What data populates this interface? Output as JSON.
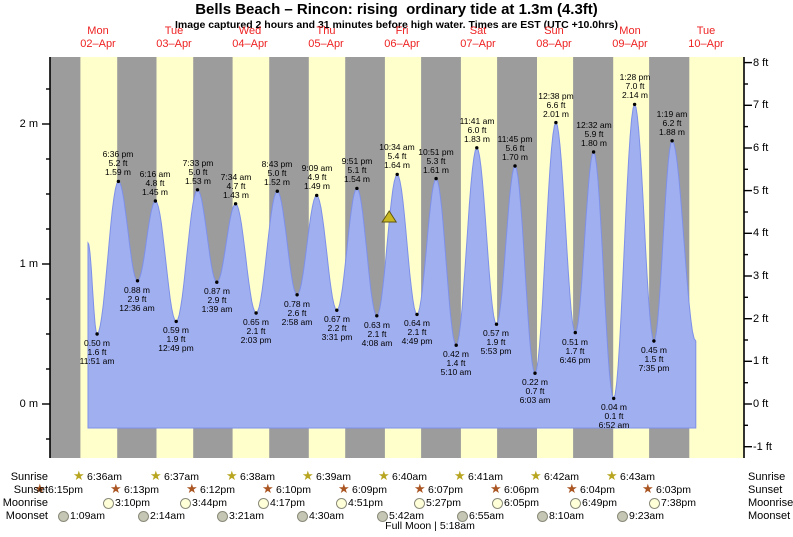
{
  "chart_data": {
    "type": "area",
    "title": "Bells Beach – Rincon: rising  ordinary tide at 1.3m (4.3ft)",
    "subtitle": "Image captured 2 hours and 31 minutes before high water. Times are EST (UTC +10.0hrs)",
    "units": {
      "left_axis": "m",
      "right_axis": "ft"
    },
    "y_ticks_m": [
      0,
      1,
      2
    ],
    "y_ticks_ft": [
      -1,
      0,
      1,
      2,
      3,
      4,
      5,
      6,
      7,
      8
    ],
    "x_range": {
      "start_day": "Mon 02–Apr",
      "end_day": "Tue 10–Apr"
    },
    "tide_events": [
      {
        "kind": "low",
        "day": 2,
        "time": "11:51 am",
        "m": 0.5,
        "ft": 1.6
      },
      {
        "kind": "high",
        "day": 2,
        "time": "6:36 pm",
        "m": 1.59,
        "ft": 5.2
      },
      {
        "kind": "low",
        "day": 3,
        "time": "12:36 am",
        "m": 0.88,
        "ft": 2.9
      },
      {
        "kind": "high",
        "day": 3,
        "time": "6:16 am",
        "m": 1.45,
        "ft": 4.8
      },
      {
        "kind": "low",
        "day": 3,
        "time": "12:49 pm",
        "m": 0.59,
        "ft": 1.9
      },
      {
        "kind": "high",
        "day": 3,
        "time": "7:33 pm",
        "m": 1.53,
        "ft": 5.0
      },
      {
        "kind": "low",
        "day": 4,
        "time": "1:39 am",
        "m": 0.87,
        "ft": 2.9
      },
      {
        "kind": "high",
        "day": 4,
        "time": "7:34 am",
        "m": 1.43,
        "ft": 4.7
      },
      {
        "kind": "low",
        "day": 4,
        "time": "2:03 pm",
        "m": 0.65,
        "ft": 2.1
      },
      {
        "kind": "high",
        "day": 4,
        "time": "8:43 pm",
        "m": 1.52,
        "ft": 5.0
      },
      {
        "kind": "low",
        "day": 5,
        "time": "2:58 am",
        "m": 0.78,
        "ft": 2.6
      },
      {
        "kind": "high",
        "day": 5,
        "time": "9:09 am",
        "m": 1.49,
        "ft": 4.9
      },
      {
        "kind": "low",
        "day": 5,
        "time": "3:31 pm",
        "m": 0.67,
        "ft": 2.2
      },
      {
        "kind": "high",
        "day": 5,
        "time": "9:51 pm",
        "m": 1.54,
        "ft": 5.1
      },
      {
        "kind": "low",
        "day": 6,
        "time": "4:08 am",
        "m": 0.63,
        "ft": 2.1
      },
      {
        "kind": "high",
        "day": 6,
        "time": "10:34 am",
        "m": 1.64,
        "ft": 5.4
      },
      {
        "kind": "low",
        "day": 6,
        "time": "4:49 pm",
        "m": 0.64,
        "ft": 2.1
      },
      {
        "kind": "high",
        "day": 6,
        "time": "10:51 pm",
        "m": 1.61,
        "ft": 5.3
      },
      {
        "kind": "low",
        "day": 7,
        "time": "5:10 am",
        "m": 0.42,
        "ft": 1.4
      },
      {
        "kind": "high",
        "day": 7,
        "time": "11:41 am",
        "m": 1.83,
        "ft": 6.0
      },
      {
        "kind": "low",
        "day": 7,
        "time": "5:53 pm",
        "m": 0.57,
        "ft": 1.9
      },
      {
        "kind": "high",
        "day": 7,
        "time": "11:45 pm",
        "m": 1.7,
        "ft": 5.6
      },
      {
        "kind": "low",
        "day": 8,
        "time": "6:03 am",
        "m": 0.22,
        "ft": 0.7
      },
      {
        "kind": "high",
        "day": 8,
        "time": "12:38 pm",
        "m": 2.01,
        "ft": 6.6
      },
      {
        "kind": "low",
        "day": 8,
        "time": "6:46 pm",
        "m": 0.51,
        "ft": 1.7
      },
      {
        "kind": "high",
        "day": 9,
        "time": "12:32 am",
        "m": 1.8,
        "ft": 5.9
      },
      {
        "kind": "low",
        "day": 9,
        "time": "6:52 am",
        "m": 0.04,
        "ft": 0.1
      },
      {
        "kind": "high",
        "day": 9,
        "time": "1:28 pm",
        "m": 2.14,
        "ft": 7.0
      },
      {
        "kind": "low",
        "day": 9,
        "time": "7:35 pm",
        "m": 0.45,
        "ft": 1.5
      },
      {
        "kind": "high",
        "day": 10,
        "time": "1:19 am",
        "m": 1.88,
        "ft": 6.2
      }
    ],
    "curve_start": {
      "day": 2,
      "time": "9:00 am",
      "m": 1.15
    },
    "curve_end": {
      "day": 10,
      "time": "8:48 am",
      "m": 0.45
    },
    "now_marker": {
      "day": 6,
      "time": "8:03 am",
      "m": 1.3
    }
  },
  "days": [
    {
      "weekday": "Mon",
      "date": "02–Apr",
      "day": 2
    },
    {
      "weekday": "Tue",
      "date": "03–Apr",
      "day": 3
    },
    {
      "weekday": "Wed",
      "date": "04–Apr",
      "day": 4
    },
    {
      "weekday": "Thu",
      "date": "05–Apr",
      "day": 5
    },
    {
      "weekday": "Fri",
      "date": "06–Apr",
      "day": 6
    },
    {
      "weekday": "Sat",
      "date": "07–Apr",
      "day": 7
    },
    {
      "weekday": "Sun",
      "date": "08–Apr",
      "day": 8
    },
    {
      "weekday": "Mon",
      "date": "09–Apr",
      "day": 9
    },
    {
      "weekday": "Tue",
      "date": "10–Apr",
      "day": 10
    }
  ],
  "axis_labels": {
    "meters": [
      {
        "text": "0 m",
        "m": 0
      },
      {
        "text": "1 m",
        "m": 1
      },
      {
        "text": "2 m",
        "m": 2
      }
    ],
    "feet": [
      {
        "text": "-1 ft",
        "ft": -1
      },
      {
        "text": "0 ft",
        "ft": 0
      },
      {
        "text": "1 ft",
        "ft": 1
      },
      {
        "text": "2 ft",
        "ft": 2
      },
      {
        "text": "3 ft",
        "ft": 3
      },
      {
        "text": "4 ft",
        "ft": 4
      },
      {
        "text": "5 ft",
        "ft": 5
      },
      {
        "text": "6 ft",
        "ft": 6
      },
      {
        "text": "7 ft",
        "ft": 7
      },
      {
        "text": "8 ft",
        "ft": 8
      }
    ]
  },
  "night_bands": [
    {
      "from_day": 1,
      "from": "6:15pm",
      "to_day": 2,
      "to": "6:36am"
    },
    {
      "from_day": 2,
      "from": "6:13pm",
      "to_day": 3,
      "to": "6:37am"
    },
    {
      "from_day": 3,
      "from": "6:12pm",
      "to_day": 4,
      "to": "6:38am"
    },
    {
      "from_day": 4,
      "from": "6:10pm",
      "to_day": 5,
      "to": "6:39am"
    },
    {
      "from_day": 5,
      "from": "6:09pm",
      "to_day": 6,
      "to": "6:40am"
    },
    {
      "from_day": 6,
      "from": "6:07pm",
      "to_day": 7,
      "to": "6:41am"
    },
    {
      "from_day": 7,
      "from": "6:06pm",
      "to_day": 8,
      "to": "6:42am"
    },
    {
      "from_day": 8,
      "from": "6:04pm",
      "to_day": 9,
      "to": "6:43am"
    },
    {
      "from_day": 9,
      "from": "6:03pm",
      "to_day": 10,
      "to": "6:44am"
    }
  ],
  "sun_moon": {
    "row_labels": {
      "sunrise": "Sunrise",
      "sunset": "Sunset",
      "moonrise": "Moonrise",
      "moonset": "Moonset"
    },
    "sunrise": [
      {
        "day": 2,
        "time": "6:36am"
      },
      {
        "day": 3,
        "time": "6:37am"
      },
      {
        "day": 4,
        "time": "6:38am"
      },
      {
        "day": 5,
        "time": "6:39am"
      },
      {
        "day": 6,
        "time": "6:40am"
      },
      {
        "day": 7,
        "time": "6:41am"
      },
      {
        "day": 8,
        "time": "6:42am"
      },
      {
        "day": 9,
        "time": "6:43am"
      }
    ],
    "sunset": [
      {
        "day": 1,
        "time": "6:15pm"
      },
      {
        "day": 2,
        "time": "6:13pm"
      },
      {
        "day": 3,
        "time": "6:12pm"
      },
      {
        "day": 4,
        "time": "6:10pm"
      },
      {
        "day": 5,
        "time": "6:09pm"
      },
      {
        "day": 6,
        "time": "6:07pm"
      },
      {
        "day": 7,
        "time": "6:06pm"
      },
      {
        "day": 8,
        "time": "6:04pm"
      },
      {
        "day": 9,
        "time": "6:03pm"
      }
    ],
    "moonrise": [
      {
        "day": 2,
        "time": "3:10pm"
      },
      {
        "day": 3,
        "time": "3:44pm"
      },
      {
        "day": 4,
        "time": "4:17pm"
      },
      {
        "day": 5,
        "time": "4:51pm"
      },
      {
        "day": 6,
        "time": "5:27pm"
      },
      {
        "day": 7,
        "time": "6:05pm"
      },
      {
        "day": 8,
        "time": "6:49pm"
      },
      {
        "day": 9,
        "time": "7:38pm"
      }
    ],
    "moonset": [
      {
        "day": 2,
        "time": "1:09am"
      },
      {
        "day": 3,
        "time": "2:14am"
      },
      {
        "day": 4,
        "time": "3:21am"
      },
      {
        "day": 5,
        "time": "4:30am"
      },
      {
        "day": 6,
        "time": "5:42am"
      },
      {
        "day": 7,
        "time": "6:55am"
      },
      {
        "day": 8,
        "time": "8:10am"
      },
      {
        "day": 9,
        "time": "9:23am"
      }
    ]
  },
  "footnote": "Full Moon | 5:18am",
  "colors": {
    "night_band": "#9c9c9c",
    "day_band": "#ffffcc",
    "tide_fill": "#a0aff0",
    "tide_edge": "#7e90e8",
    "day_label": "#ee2222",
    "sunrise_star": "#b8a520",
    "sunset_star": "#aa5522",
    "moonrise_fill": "#ffffd8",
    "moonset_fill": "#c6c6b4",
    "now_marker": "#c9b821",
    "axis": "#000000"
  }
}
